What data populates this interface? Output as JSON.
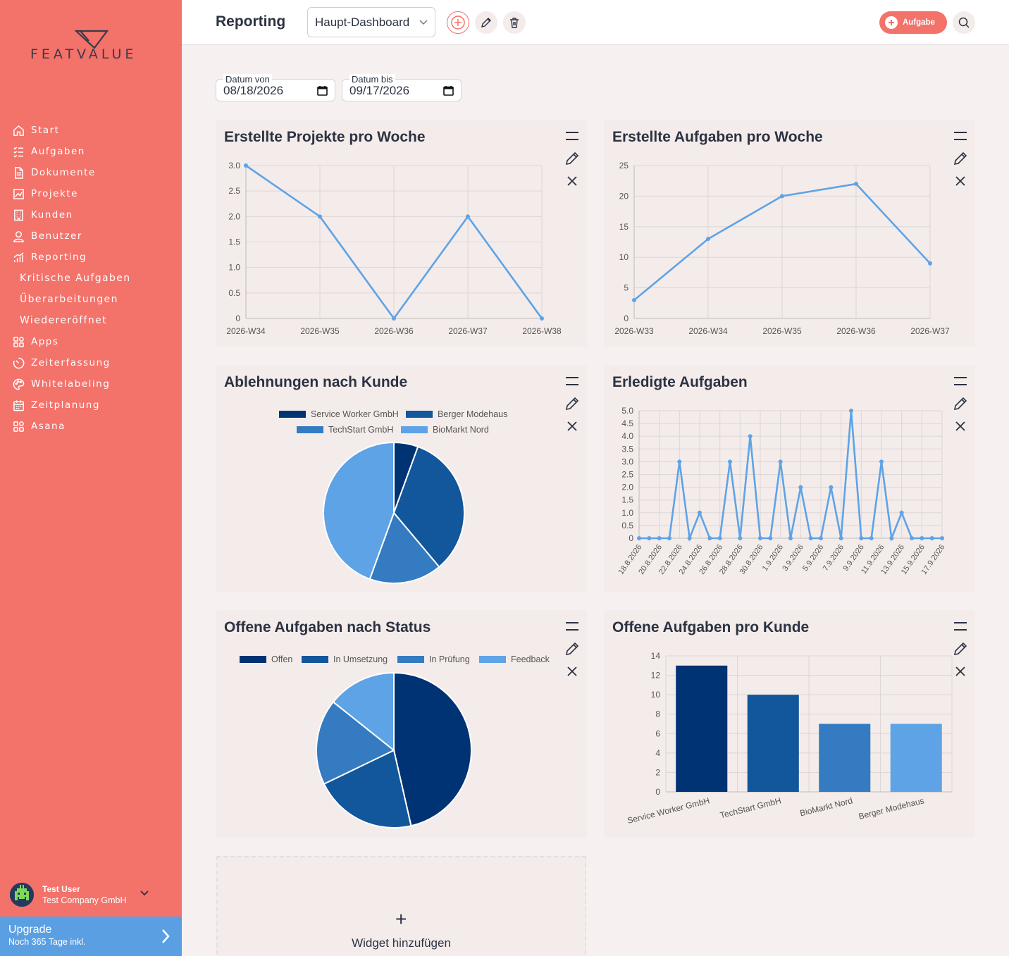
{
  "brand": {
    "name": "FEATVALUE"
  },
  "sidebar": {
    "items": [
      {
        "label": "Start",
        "icon": "home-icon"
      },
      {
        "label": "Aufgaben",
        "icon": "checklist-icon"
      },
      {
        "label": "Dokumente",
        "icon": "document-icon"
      },
      {
        "label": "Projekte",
        "icon": "projects-icon"
      },
      {
        "label": "Kunden",
        "icon": "building-icon"
      },
      {
        "label": "Benutzer",
        "icon": "user-icon"
      },
      {
        "label": "Reporting",
        "icon": "reporting-icon"
      },
      {
        "label": "Kritische Aufgaben",
        "sub": true
      },
      {
        "label": "Überarbeitungen",
        "sub": true
      },
      {
        "label": "Wiedereröffnet",
        "sub": true
      },
      {
        "label": "Apps",
        "icon": "apps-icon"
      },
      {
        "label": "Zeiterfassung",
        "icon": "timer-icon"
      },
      {
        "label": "Whitelabeling",
        "icon": "palette-icon"
      },
      {
        "label": "Zeitplanung",
        "icon": "calendar-icon"
      },
      {
        "label": "Asana",
        "icon": "apps-icon"
      }
    ],
    "user": {
      "name": "Test User",
      "company": "Test Company GmbH"
    },
    "upgrade": {
      "title": "Upgrade",
      "subtitle": "Noch 365 Tage inkl."
    }
  },
  "header": {
    "title": "Reporting",
    "dashboard_select": "Haupt-Dashboard",
    "task_button": "Aufgabe"
  },
  "filters": {
    "from_label": "Datum von",
    "from_value": "08/18/2026",
    "to_label": "Datum bis",
    "to_value": "09/17/2026"
  },
  "add_widget_label": "Widget hinzufügen",
  "add_widget_plus": "+",
  "colors": {
    "sidebar": "#f3726a",
    "line": "#5ea3e6",
    "blue1": "#003373",
    "blue2": "#12569b",
    "blue3": "#347bc2",
    "blue4": "#5ea3e6"
  },
  "chart_data": [
    {
      "id": "projects_week",
      "type": "line",
      "title": "Erstellte Projekte pro Woche",
      "categories": [
        "2026-W34",
        "2026-W35",
        "2026-W36",
        "2026-W37",
        "2026-W38"
      ],
      "values": [
        3,
        2,
        0,
        2,
        0
      ],
      "ylim": [
        0,
        3
      ],
      "yticks": [
        "0",
        "0.5",
        "1.0",
        "1.5",
        "2.0",
        "2.5",
        "3.0"
      ],
      "grid": true
    },
    {
      "id": "tasks_week",
      "type": "line",
      "title": "Erstellte Aufgaben pro Woche",
      "categories": [
        "2026-W33",
        "2026-W34",
        "2026-W35",
        "2026-W36",
        "2026-W37"
      ],
      "values": [
        3,
        13,
        20,
        22,
        9
      ],
      "ylim": [
        0,
        25
      ],
      "yticks": [
        "0",
        "5",
        "10",
        "15",
        "20",
        "25"
      ],
      "grid": true
    },
    {
      "id": "rejections_customer",
      "type": "pie",
      "title": "Ablehnungen nach Kunde",
      "legend": "top",
      "labels": [
        "Service Worker GmbH",
        "Berger Modehaus",
        "TechStart GmbH",
        "BioMarkt Nord"
      ],
      "values": [
        1,
        6,
        3,
        8
      ]
    },
    {
      "id": "done_tasks",
      "type": "line",
      "title": "Erledigte Aufgaben",
      "categories": [
        "18.8.2026",
        "19.8.2026",
        "20.8.2026",
        "21.8.2026",
        "22.8.2026",
        "23.8.2026",
        "24.8.2026",
        "25.8.2026",
        "26.8.2026",
        "27.8.2026",
        "28.8.2026",
        "29.8.2026",
        "30.8.2026",
        "31.8.2026",
        "1.9.2026",
        "2.9.2026",
        "3.9.2026",
        "4.9.2026",
        "5.9.2026",
        "6.9.2026",
        "7.9.2026",
        "8.9.2026",
        "9.9.2026",
        "10.9.2026",
        "11.9.2026",
        "12.9.2026",
        "13.9.2026",
        "14.9.2026",
        "15.9.2026",
        "16.9.2026",
        "17.9.2026"
      ],
      "tick_labels": [
        "18.8.2026",
        "20.8.2026",
        "22.8.2026",
        "24.8.2026",
        "26.8.2026",
        "28.8.2026",
        "30.8.2026",
        "1.9.2026",
        "3.9.2026",
        "5.9.2026",
        "7.9.2026",
        "9.9.2026",
        "11.9.2026",
        "13.9.2026",
        "15.9.2026",
        "17.9.2026"
      ],
      "values": [
        0,
        0,
        0,
        0,
        3,
        0,
        1,
        0,
        0,
        3,
        0,
        4,
        0,
        0,
        3,
        0,
        2,
        0,
        0,
        2,
        0,
        5,
        0,
        0,
        3,
        0,
        1,
        0,
        0,
        0,
        0
      ],
      "ylim": [
        0,
        5
      ],
      "yticks": [
        "0",
        "0.5",
        "1.0",
        "1.5",
        "2.0",
        "2.5",
        "3.0",
        "3.5",
        "4.0",
        "4.5",
        "5.0"
      ],
      "grid": true
    },
    {
      "id": "open_status",
      "type": "pie",
      "title": "Offene Aufgaben nach Status",
      "legend": "top",
      "labels": [
        "Offen",
        "In Umsetzung",
        "In Prüfung",
        "Feedback"
      ],
      "values": [
        13,
        6,
        5,
        4
      ]
    },
    {
      "id": "open_customer",
      "type": "bar",
      "title": "Offene Aufgaben pro Kunde",
      "categories": [
        "Service Worker GmbH",
        "TechStart GmbH",
        "BioMarkt Nord",
        "Berger Modehaus"
      ],
      "values": [
        13,
        10,
        7,
        7
      ],
      "ylim": [
        0,
        14
      ],
      "yticks": [
        "0",
        "2",
        "4",
        "6",
        "8",
        "10",
        "12",
        "14"
      ],
      "grid": true
    }
  ]
}
